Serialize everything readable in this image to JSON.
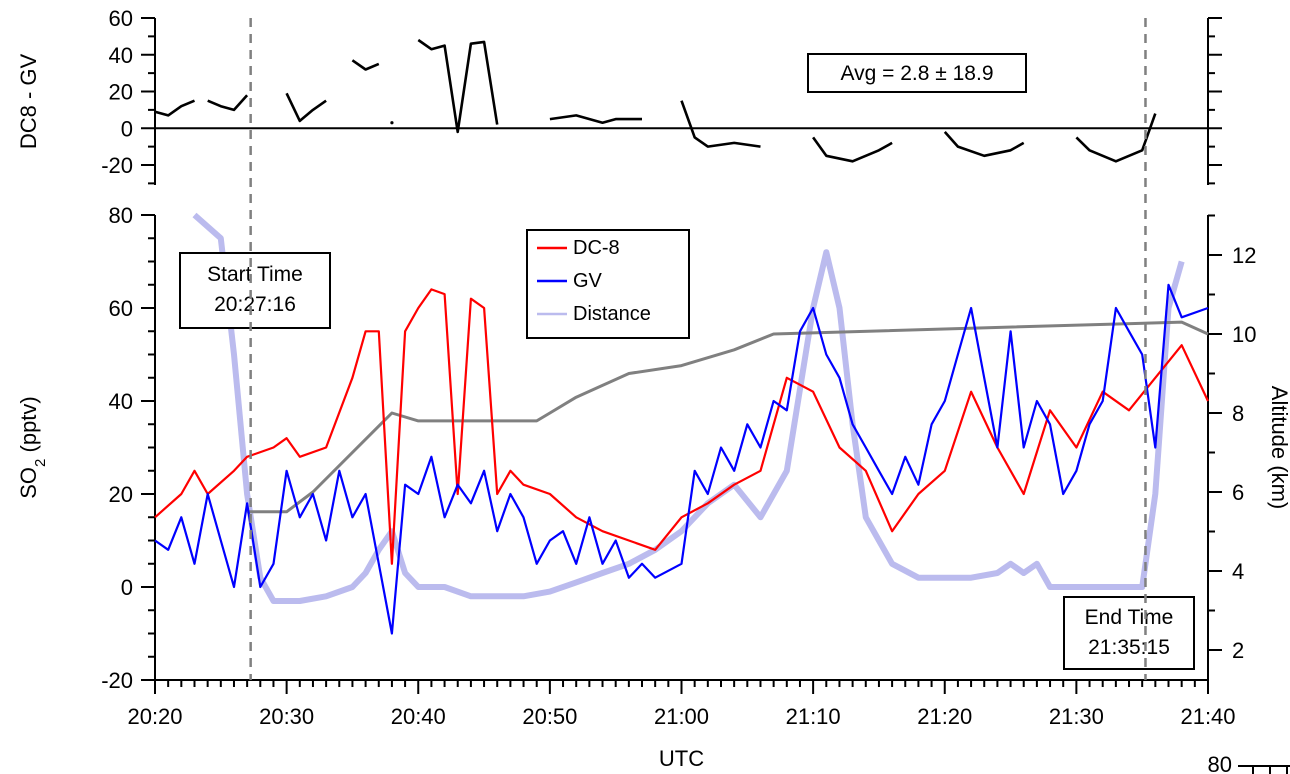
{
  "chart_data": [
    {
      "type": "line",
      "panel": "top",
      "ylabel": "DC8 - GV",
      "ylim": [
        -25,
        60
      ],
      "yticks": [
        -20,
        0,
        20,
        40,
        60
      ],
      "xlim": [
        "20:20",
        "21:40"
      ],
      "annotation": "Avg = 2.8 ± 18.9",
      "zero_line": true,
      "series": [
        {
          "color": "#000000",
          "segments": [
            [
              [
                "20:20",
                9
              ],
              [
                "20:21",
                7
              ],
              [
                "20:22",
                12
              ],
              [
                "20:23",
                15
              ]
            ],
            [
              [
                "20:24",
                15
              ],
              [
                "20:25",
                12
              ],
              [
                "20:26",
                10
              ],
              [
                "20:27",
                18
              ]
            ],
            [
              [
                "20:30",
                19
              ],
              [
                "20:31",
                4
              ],
              [
                "20:32",
                10
              ],
              [
                "20:33",
                15
              ]
            ],
            [
              [
                "20:35",
                37
              ],
              [
                "20:36",
                32
              ],
              [
                "20:37",
                35
              ]
            ],
            [
              [
                "20:38",
                3
              ]
            ],
            [
              [
                "20:40",
                48
              ],
              [
                "20:41",
                43
              ],
              [
                "20:42",
                45
              ],
              [
                "20:43",
                -2
              ],
              [
                "20:44",
                46
              ],
              [
                "20:45",
                47
              ],
              [
                "20:46",
                2
              ]
            ],
            [
              [
                "20:50",
                5
              ],
              [
                "20:52",
                7
              ],
              [
                "20:54",
                3
              ],
              [
                "20:55",
                5
              ],
              [
                "20:57",
                5
              ]
            ],
            [
              [
                "21:00",
                15
              ],
              [
                "21:01",
                -5
              ],
              [
                "21:02",
                -10
              ],
              [
                "21:04",
                -8
              ],
              [
                "21:06",
                -10
              ]
            ],
            [
              [
                "21:10",
                -5
              ],
              [
                "21:11",
                -15
              ],
              [
                "21:13",
                -18
              ],
              [
                "21:15",
                -12
              ],
              [
                "21:16",
                -8
              ]
            ],
            [
              [
                "21:20",
                -2
              ],
              [
                "21:21",
                -10
              ],
              [
                "21:23",
                -15
              ],
              [
                "21:25",
                -12
              ],
              [
                "21:26",
                -8
              ]
            ],
            [
              [
                "21:30",
                -5
              ],
              [
                "21:31",
                -12
              ],
              [
                "21:33",
                -18
              ],
              [
                "21:35",
                -12
              ],
              [
                "21:36",
                8
              ]
            ]
          ]
        }
      ]
    },
    {
      "type": "line",
      "panel": "bottom",
      "xlabel": "UTC",
      "ylabel": "SO2 (pptv)",
      "y2label": "Altitude (km)",
      "xlim": [
        "20:20",
        "21:40"
      ],
      "xticks": [
        "20:20",
        "20:30",
        "20:40",
        "20:50",
        "21:00",
        "21:10",
        "21:20",
        "21:30",
        "21:40"
      ],
      "ylim": [
        -20,
        80
      ],
      "yticks": [
        -20,
        0,
        20,
        40,
        60,
        80
      ],
      "y2lim": [
        1,
        13
      ],
      "y2ticks": [
        2,
        4,
        6,
        8,
        10,
        12
      ],
      "legend": "top-center",
      "series": [
        {
          "name": "DC-8",
          "color": "#ff0000",
          "points": [
            [
              "20:20",
              15
            ],
            [
              "20:22",
              20
            ],
            [
              "20:23",
              25
            ],
            [
              "20:24",
              20
            ],
            [
              "20:26",
              25
            ],
            [
              "20:27",
              28
            ],
            [
              "20:29",
              30
            ],
            [
              "20:30",
              32
            ],
            [
              "20:31",
              28
            ],
            [
              "20:33",
              30
            ],
            [
              "20:35",
              45
            ],
            [
              "20:36",
              55
            ],
            [
              "20:37",
              55
            ],
            [
              "20:38",
              5
            ],
            [
              "20:39",
              55
            ],
            [
              "20:40",
              60
            ],
            [
              "20:41",
              64
            ],
            [
              "20:42",
              63
            ],
            [
              "20:43",
              20
            ],
            [
              "20:44",
              62
            ],
            [
              "20:45",
              60
            ],
            [
              "20:46",
              20
            ],
            [
              "20:47",
              25
            ],
            [
              "20:48",
              22
            ],
            [
              "20:50",
              20
            ],
            [
              "20:52",
              15
            ],
            [
              "20:54",
              12
            ],
            [
              "20:56",
              10
            ],
            [
              "20:58",
              8
            ],
            [
              "21:00",
              15
            ],
            [
              "21:02",
              18
            ],
            [
              "21:04",
              22
            ],
            [
              "21:06",
              25
            ],
            [
              "21:08",
              45
            ],
            [
              "21:10",
              42
            ],
            [
              "21:12",
              30
            ],
            [
              "21:14",
              25
            ],
            [
              "21:16",
              12
            ],
            [
              "21:18",
              20
            ],
            [
              "21:20",
              25
            ],
            [
              "21:22",
              42
            ],
            [
              "21:24",
              30
            ],
            [
              "21:26",
              20
            ],
            [
              "21:28",
              38
            ],
            [
              "21:30",
              30
            ],
            [
              "21:32",
              42
            ],
            [
              "21:34",
              38
            ],
            [
              "21:36",
              45
            ],
            [
              "21:38",
              52
            ],
            [
              "21:40",
              40
            ]
          ]
        },
        {
          "name": "GV",
          "color": "#0000ff",
          "points": [
            [
              "20:20",
              10
            ],
            [
              "20:21",
              8
            ],
            [
              "20:22",
              15
            ],
            [
              "20:23",
              5
            ],
            [
              "20:24",
              20
            ],
            [
              "20:25",
              10
            ],
            [
              "20:26",
              0
            ],
            [
              "20:27",
              18
            ],
            [
              "20:28",
              0
            ],
            [
              "20:29",
              5
            ],
            [
              "20:30",
              25
            ],
            [
              "20:31",
              15
            ],
            [
              "20:32",
              20
            ],
            [
              "20:33",
              10
            ],
            [
              "20:34",
              25
            ],
            [
              "20:35",
              15
            ],
            [
              "20:36",
              20
            ],
            [
              "20:37",
              5
            ],
            [
              "20:38",
              -10
            ],
            [
              "20:39",
              22
            ],
            [
              "20:40",
              20
            ],
            [
              "20:41",
              28
            ],
            [
              "20:42",
              15
            ],
            [
              "20:43",
              22
            ],
            [
              "20:44",
              18
            ],
            [
              "20:45",
              25
            ],
            [
              "20:46",
              12
            ],
            [
              "20:47",
              20
            ],
            [
              "20:48",
              15
            ],
            [
              "20:49",
              5
            ],
            [
              "20:50",
              10
            ],
            [
              "20:51",
              12
            ],
            [
              "20:52",
              5
            ],
            [
              "20:53",
              15
            ],
            [
              "20:54",
              5
            ],
            [
              "20:55",
              10
            ],
            [
              "20:56",
              2
            ],
            [
              "20:57",
              5
            ],
            [
              "20:58",
              2
            ],
            [
              "21:00",
              5
            ],
            [
              "21:01",
              25
            ],
            [
              "21:02",
              20
            ],
            [
              "21:03",
              30
            ],
            [
              "21:04",
              25
            ],
            [
              "21:05",
              35
            ],
            [
              "21:06",
              30
            ],
            [
              "21:07",
              40
            ],
            [
              "21:08",
              38
            ],
            [
              "21:09",
              55
            ],
            [
              "21:10",
              60
            ],
            [
              "21:11",
              50
            ],
            [
              "21:12",
              45
            ],
            [
              "21:13",
              35
            ],
            [
              "21:14",
              30
            ],
            [
              "21:15",
              25
            ],
            [
              "21:16",
              20
            ],
            [
              "21:17",
              28
            ],
            [
              "21:18",
              22
            ],
            [
              "21:19",
              35
            ],
            [
              "21:20",
              40
            ],
            [
              "21:21",
              50
            ],
            [
              "21:22",
              60
            ],
            [
              "21:23",
              45
            ],
            [
              "21:24",
              30
            ],
            [
              "21:25",
              55
            ],
            [
              "21:26",
              30
            ],
            [
              "21:27",
              40
            ],
            [
              "21:28",
              35
            ],
            [
              "21:29",
              20
            ],
            [
              "21:30",
              25
            ],
            [
              "21:31",
              35
            ],
            [
              "21:32",
              40
            ],
            [
              "21:33",
              60
            ],
            [
              "21:34",
              55
            ],
            [
              "21:35",
              50
            ],
            [
              "21:36",
              30
            ],
            [
              "21:37",
              65
            ],
            [
              "21:38",
              58
            ],
            [
              "21:40",
              60
            ]
          ]
        },
        {
          "name": "Distance",
          "color": "#bbbbee",
          "points": [
            [
              "20:23",
              80
            ],
            [
              "20:25",
              75
            ],
            [
              "20:26",
              50
            ],
            [
              "20:27",
              20
            ],
            [
              "20:28",
              2
            ],
            [
              "20:29",
              -3
            ],
            [
              "20:31",
              -3
            ],
            [
              "20:33",
              -2
            ],
            [
              "20:35",
              0
            ],
            [
              "20:36",
              3
            ],
            [
              "20:37",
              8
            ],
            [
              "20:38",
              12
            ],
            [
              "20:39",
              3
            ],
            [
              "20:40",
              0
            ],
            [
              "20:42",
              0
            ],
            [
              "20:44",
              -2
            ],
            [
              "20:46",
              -2
            ],
            [
              "20:48",
              -2
            ],
            [
              "20:50",
              -1
            ],
            [
              "20:52",
              1
            ],
            [
              "20:54",
              3
            ],
            [
              "20:56",
              5
            ],
            [
              "20:58",
              8
            ],
            [
              "21:00",
              12
            ],
            [
              "21:02",
              18
            ],
            [
              "21:04",
              22
            ],
            [
              "21:06",
              15
            ],
            [
              "21:08",
              25
            ],
            [
              "21:10",
              60
            ],
            [
              "21:11",
              72
            ],
            [
              "21:12",
              60
            ],
            [
              "21:13",
              35
            ],
            [
              "21:14",
              15
            ],
            [
              "21:15",
              10
            ],
            [
              "21:16",
              5
            ],
            [
              "21:18",
              2
            ],
            [
              "21:20",
              2
            ],
            [
              "21:22",
              2
            ],
            [
              "21:24",
              3
            ],
            [
              "21:25",
              5
            ],
            [
              "21:26",
              3
            ],
            [
              "21:27",
              5
            ],
            [
              "21:28",
              0
            ],
            [
              "21:30",
              0
            ],
            [
              "21:32",
              0
            ],
            [
              "21:34",
              0
            ],
            [
              "21:35",
              0
            ],
            [
              "21:36",
              20
            ],
            [
              "21:37",
              60
            ],
            [
              "21:38",
              70
            ]
          ]
        },
        {
          "name": "",
          "axis": "right",
          "color": "#808080",
          "points": [
            [
              "20:27",
              5.5
            ],
            [
              "20:30",
              5.5
            ],
            [
              "20:32",
              6.0
            ],
            [
              "20:38",
              8.0
            ],
            [
              "20:40",
              7.8
            ],
            [
              "20:49",
              7.8
            ],
            [
              "20:50",
              8.0
            ],
            [
              "20:52",
              8.4
            ],
            [
              "20:54",
              8.7
            ],
            [
              "20:56",
              9.0
            ],
            [
              "21:00",
              9.2
            ],
            [
              "21:04",
              9.6
            ],
            [
              "21:07",
              10.0
            ],
            [
              "21:40",
              10.0
            ],
            [
              "21:38",
              10.3
            ]
          ]
        }
      ],
      "annotations": [
        {
          "label": "Start Time\n20:27:16",
          "x": "20:27:16"
        },
        {
          "label": "End Time\n21:35:15",
          "x": "21:35:15"
        }
      ]
    }
  ],
  "corner_fragment": "80"
}
